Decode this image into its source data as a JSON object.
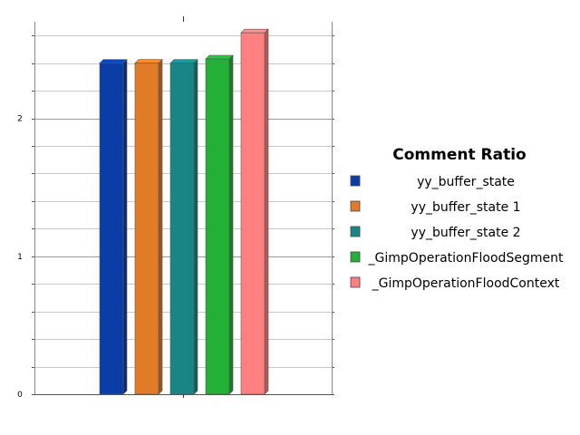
{
  "chart_data": {
    "type": "bar",
    "title": "",
    "legend_title": "Comment Ratio",
    "legend_position": "right",
    "categories": [
      ""
    ],
    "series": [
      {
        "name": "yy_buffer_state",
        "values": [
          2.4
        ],
        "color": "#0a3ea6"
      },
      {
        "name": "yy_buffer_state 1",
        "values": [
          2.4
        ],
        "color": "#e07b27"
      },
      {
        "name": "yy_buffer_state 2",
        "values": [
          2.4
        ],
        "color": "#1a8585"
      },
      {
        "name": "_GimpOperationFloodSegment",
        "values": [
          2.43
        ],
        "color": "#23b036"
      },
      {
        "name": "_GimpOperationFloodContext",
        "values": [
          2.62
        ],
        "color": "#ff8080"
      }
    ],
    "xlabel": "",
    "ylabel": "",
    "ylim": [
      0,
      2.7
    ],
    "yticks": [
      {
        "value": 0,
        "label": "0"
      },
      {
        "value": 1,
        "label": "1"
      },
      {
        "value": 2,
        "label": "2"
      }
    ],
    "grid": true
  }
}
